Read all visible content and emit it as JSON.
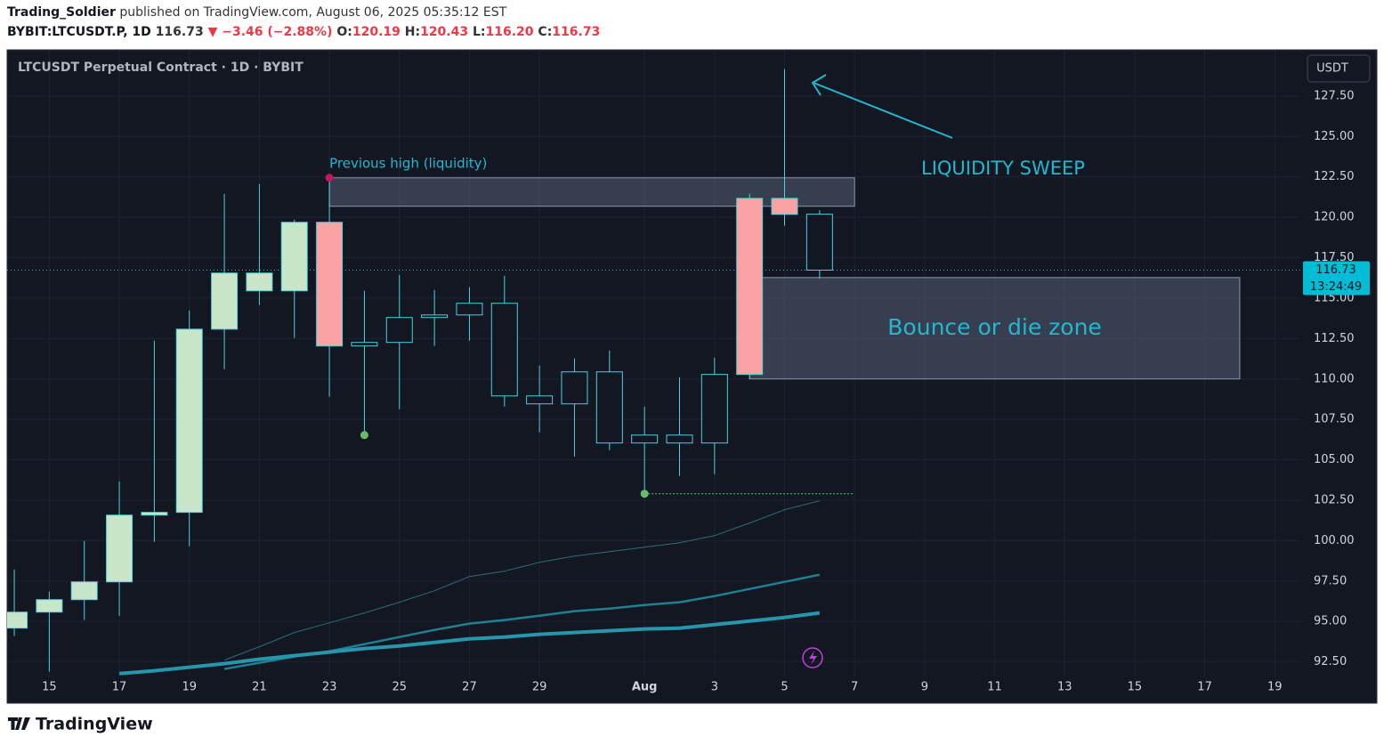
{
  "header": {
    "publisher": "Trading_Soldier",
    "published": "published on TradingView.com, August 06, 2025 05:35:12 EST",
    "symbol": "BYBIT:LTCUSDT.P, 1D",
    "last": "116.73",
    "change": "▼ −3.46 (−2.88%)",
    "ohlc": [
      {
        "label": "O:",
        "value": "120.19"
      },
      {
        "label": "H:",
        "value": "120.43"
      },
      {
        "label": "L:",
        "value": "116.20"
      },
      {
        "label": "C:",
        "value": "116.73"
      }
    ]
  },
  "footer": {
    "brand": "TradingView"
  },
  "chart_data": {
    "type": "candlestick",
    "title": "LTCUSDT Perpetual Contract · 1D · BYBIT",
    "currency": "USDT",
    "x": [
      "07-14",
      "07-15",
      "07-16",
      "07-17",
      "07-18",
      "07-19",
      "07-20",
      "07-21",
      "07-22",
      "07-23",
      "07-24",
      "07-25",
      "07-26",
      "07-27",
      "07-28",
      "07-29",
      "07-30",
      "07-31",
      "08-01",
      "08-02",
      "08-03",
      "08-04",
      "08-05",
      "08-06"
    ],
    "open": [
      94.59,
      95.58,
      96.35,
      97.45,
      101.58,
      101.75,
      113.08,
      115.45,
      115.45,
      119.69,
      112.04,
      112.26,
      113.8,
      113.96,
      114.68,
      108.95,
      108.46,
      110.44,
      106.04,
      106.53,
      106.04,
      110.28,
      121.17,
      120.19
    ],
    "high": [
      98.22,
      96.85,
      99.98,
      103.67,
      112.37,
      114.24,
      121.45,
      122.05,
      119.85,
      122.44,
      115.45,
      116.44,
      115.5,
      115.67,
      116.38,
      110.83,
      111.27,
      111.76,
      108.29,
      110.11,
      111.32,
      121.45,
      129.15,
      120.43
    ],
    "low": [
      94.1,
      91.9,
      95.09,
      95.36,
      99.93,
      99.65,
      110.6,
      114.57,
      112.53,
      108.9,
      106.53,
      108.13,
      112.04,
      112.37,
      108.29,
      106.7,
      105.21,
      105.6,
      102.9,
      104.0,
      104.11,
      110.0,
      119.47,
      116.2
    ],
    "close": [
      95.58,
      96.35,
      97.45,
      101.58,
      101.75,
      113.08,
      116.55,
      116.55,
      119.69,
      112.04,
      112.26,
      113.8,
      113.96,
      114.68,
      108.95,
      108.46,
      110.44,
      106.04,
      106.53,
      106.04,
      110.28,
      121.17,
      120.18,
      116.73
    ],
    "colors": [
      "#c8e6c9",
      "#c8e6c9",
      "#c8e6c9",
      "#c8e6c9",
      "#c8e6c9",
      "#c8e6c9",
      "#c8e6c9",
      "#c8e6c9",
      "#c8e6c9",
      "#faa1a4",
      "#131722",
      "#131722",
      "#131722",
      "#131722",
      "#131722",
      "#131722",
      "#131722",
      "#131722",
      "#131722",
      "#131722",
      "#131722",
      "#faa1a4",
      "#faa1a4",
      "#131722"
    ],
    "edge_color": "#4dd0e1",
    "series": [
      {
        "color": "#2a6f7a",
        "width": 1,
        "values": [
          null,
          null,
          null,
          null,
          null,
          null,
          92.61,
          93.44,
          94.32,
          94.92,
          95.53,
          96.19,
          96.9,
          97.78,
          98.11,
          98.66,
          99.05,
          99.32,
          99.6,
          99.87,
          100.31,
          101.09,
          101.91,
          102.46
        ]
      },
      {
        "color": "#1f7f93",
        "width": 2.5,
        "values": [
          null,
          null,
          null,
          null,
          null,
          null,
          92.06,
          92.45,
          92.83,
          93.16,
          93.6,
          94.04,
          94.48,
          94.87,
          95.09,
          95.36,
          95.64,
          95.8,
          96.02,
          96.19,
          96.57,
          97.01,
          97.45,
          97.89
        ]
      },
      {
        "color": "#2596ab",
        "width": 4,
        "values": [
          null,
          null,
          null,
          91.78,
          91.95,
          92.17,
          92.39,
          92.67,
          92.89,
          93.11,
          93.33,
          93.49,
          93.71,
          93.93,
          94.04,
          94.21,
          94.32,
          94.43,
          94.54,
          94.59,
          94.81,
          95.03,
          95.25,
          95.53
        ]
      }
    ],
    "zones": [
      {
        "x": [
          "07-23",
          "08-07"
        ],
        "y": [
          120.68,
          122.44
        ],
        "label": "Previous high (liquidity)"
      },
      {
        "x": [
          "08-04",
          "08-18"
        ],
        "y": [
          110.0,
          116.27
        ],
        "label": "Bounce or die zone"
      }
    ],
    "markers": [
      {
        "x": "07-23",
        "y": 122.44,
        "color": "#c2185b"
      },
      {
        "x": "07-24",
        "y": 106.53,
        "color": "#66bb6a"
      },
      {
        "x": "08-01",
        "y": 102.9,
        "color": "#66bb6a"
      }
    ],
    "level_lines": [
      {
        "x": [
          "08-01",
          "08-07"
        ],
        "y": 102.9,
        "color": "#66bb6a"
      }
    ],
    "annotation": "LIQUIDITY SWEEP",
    "last_price": 116.73,
    "last_price_label": "116.73",
    "countdown": "13:24:49",
    "xlim": [
      "07-13",
      "08-20"
    ],
    "ylim": [
      91.6,
      130.3
    ],
    "xticks": [
      {
        "value": "07-15",
        "label": "15"
      },
      {
        "value": "07-17",
        "label": "17"
      },
      {
        "value": "07-19",
        "label": "19"
      },
      {
        "value": "07-21",
        "label": "21"
      },
      {
        "value": "07-23",
        "label": "23"
      },
      {
        "value": "07-25",
        "label": "25"
      },
      {
        "value": "07-27",
        "label": "27"
      },
      {
        "value": "07-29",
        "label": "29"
      },
      {
        "value": "08-01",
        "label": "Aug"
      },
      {
        "value": "08-03",
        "label": "3"
      },
      {
        "value": "08-05",
        "label": "5"
      },
      {
        "value": "08-07",
        "label": "7"
      },
      {
        "value": "08-09",
        "label": "9"
      },
      {
        "value": "08-11",
        "label": "11"
      },
      {
        "value": "08-13",
        "label": "13"
      },
      {
        "value": "08-15",
        "label": "15"
      },
      {
        "value": "08-17",
        "label": "17"
      },
      {
        "value": "08-19",
        "label": "19"
      }
    ],
    "yticks": [
      {
        "value": 92.5,
        "label": "92.50"
      },
      {
        "value": 95,
        "label": "95.00"
      },
      {
        "value": 97.5,
        "label": "97.50"
      },
      {
        "value": 100,
        "label": "100.00"
      },
      {
        "value": 102.5,
        "label": "102.50"
      },
      {
        "value": 105,
        "label": "105.00"
      },
      {
        "value": 107.5,
        "label": "107.50"
      },
      {
        "value": 110,
        "label": "110.00"
      },
      {
        "value": 112.5,
        "label": "112.50"
      },
      {
        "value": 115,
        "label": "115.00"
      },
      {
        "value": 117.5,
        "label": "117.50"
      },
      {
        "value": 120,
        "label": "120.00"
      },
      {
        "value": 122.5,
        "label": "122.50"
      },
      {
        "value": 125,
        "label": "125.00"
      },
      {
        "value": 127.5,
        "label": "127.50"
      }
    ],
    "grid": true
  }
}
